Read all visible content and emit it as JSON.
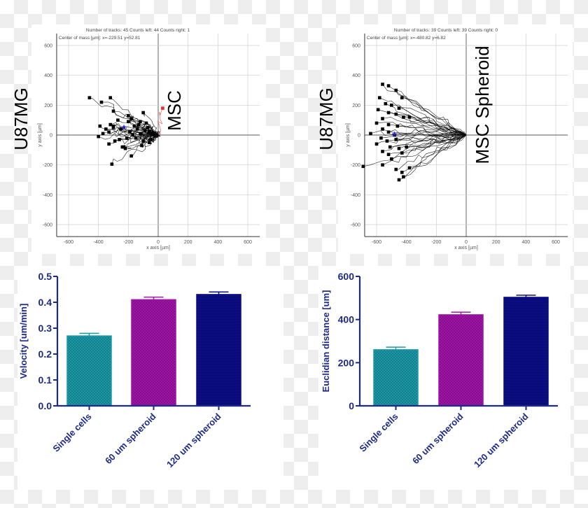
{
  "chart_data": [
    {
      "type": "scatter",
      "subtype": "cell-track-plot",
      "header_line1": "Number of tracks: 45  Counts left: 44  Counts right: 1",
      "header_line2": "Center of mass [µm]: x=-229.51 y=52.81",
      "xlabel": "x axis [µm]",
      "ylabel": "y axis [µm]",
      "xlim": [
        -680,
        680
      ],
      "ylim": [
        -680,
        680
      ],
      "xticks": [
        -600,
        -400,
        -200,
        0,
        200,
        400,
        600
      ],
      "yticks": [
        600,
        400,
        200,
        0,
        -200,
        -400,
        -600
      ],
      "grid": true,
      "side_label": "U87MG",
      "condition_label": "MSC",
      "center_of_mass": [
        -229.51,
        52.81
      ],
      "track_color": "#000000",
      "right_track_color": "#e03030",
      "com_color": "#2020c0",
      "track_endpoints": [
        [
          -460,
          250
        ],
        [
          -380,
          220
        ],
        [
          -320,
          250
        ],
        [
          -300,
          160
        ],
        [
          -270,
          100
        ],
        [
          -200,
          130
        ],
        [
          -180,
          110
        ],
        [
          -100,
          150
        ],
        [
          -390,
          60
        ],
        [
          -350,
          40
        ],
        [
          -320,
          70
        ],
        [
          -300,
          60
        ],
        [
          -330,
          20
        ],
        [
          -300,
          50
        ],
        [
          -400,
          -10
        ],
        [
          -370,
          10
        ],
        [
          -330,
          -60
        ],
        [
          -290,
          -40
        ],
        [
          -260,
          -30
        ],
        [
          -240,
          -80
        ],
        [
          -220,
          -90
        ],
        [
          -160,
          60
        ],
        [
          -120,
          90
        ],
        [
          -80,
          80
        ],
        [
          -60,
          20
        ],
        [
          -150,
          -20
        ],
        [
          -100,
          -40
        ],
        [
          -140,
          40
        ],
        [
          -180,
          -140
        ],
        [
          -310,
          -195
        ],
        [
          -200,
          90
        ],
        [
          -230,
          -80
        ],
        [
          -50,
          -30
        ],
        [
          -90,
          30
        ],
        [
          -70,
          50
        ],
        [
          -120,
          10
        ],
        [
          -40,
          10
        ],
        [
          -110,
          -70
        ],
        [
          -250,
          40
        ],
        [
          -190,
          20
        ],
        [
          -210,
          -20
        ],
        [
          -130,
          70
        ],
        [
          -170,
          0
        ],
        [
          -60,
          -50
        ],
        [
          30,
          180
        ]
      ]
    },
    {
      "type": "scatter",
      "subtype": "cell-track-plot",
      "header_line1": "Number of tracks: 39  Counts left: 39  Counts right: 0",
      "header_line2": "Center of mass [µm]: x=-480.82 y=6.82",
      "xlabel": "x axis [µm]",
      "ylabel": "y axis [µm]",
      "xlim": [
        -680,
        680
      ],
      "ylim": [
        -680,
        680
      ],
      "xticks": [
        -600,
        -400,
        -200,
        0,
        200,
        400,
        600
      ],
      "yticks": [
        600,
        400,
        200,
        0,
        -200,
        -400,
        -600
      ],
      "grid": true,
      "side_label": "U87MG",
      "condition_label": "MSC Spheroid",
      "center_of_mass": [
        -480.82,
        6.82
      ],
      "track_color": "#000000",
      "com_color": "#2020c0",
      "track_endpoints": [
        [
          -560,
          340
        ],
        [
          -520,
          330
        ],
        [
          -470,
          300
        ],
        [
          -430,
          250
        ],
        [
          -580,
          250
        ],
        [
          -540,
          210
        ],
        [
          -500,
          200
        ],
        [
          -450,
          180
        ],
        [
          -590,
          170
        ],
        [
          -520,
          150
        ],
        [
          -470,
          140
        ],
        [
          -420,
          120
        ],
        [
          -560,
          110
        ],
        [
          -600,
          80
        ],
        [
          -520,
          70
        ],
        [
          -460,
          60
        ],
        [
          -560,
          40
        ],
        [
          -640,
          10
        ],
        [
          -520,
          20
        ],
        [
          -480,
          0
        ],
        [
          -570,
          -20
        ],
        [
          -530,
          -40
        ],
        [
          -470,
          -30
        ],
        [
          -600,
          -60
        ],
        [
          -510,
          -80
        ],
        [
          -450,
          -90
        ],
        [
          -560,
          -110
        ],
        [
          -520,
          -130
        ],
        [
          -430,
          -120
        ],
        [
          -500,
          -160
        ],
        [
          -690,
          -210
        ],
        [
          -560,
          -200
        ],
        [
          -470,
          -230
        ],
        [
          -430,
          -250
        ],
        [
          -450,
          -300
        ],
        [
          -420,
          -280
        ],
        [
          -380,
          -220
        ],
        [
          -400,
          -80
        ],
        [
          -380,
          120
        ]
      ]
    },
    {
      "type": "bar",
      "categories": [
        "Single cells",
        "60 um spheroid",
        "120 um spheroid"
      ],
      "values": [
        0.27,
        0.41,
        0.43
      ],
      "errors": [
        0.01,
        0.01,
        0.01
      ],
      "colors": [
        "#1a9aa8",
        "#a014a8",
        "#0c0c82"
      ],
      "ylabel": "Velocity [um/min]",
      "ylim": [
        0,
        0.5
      ],
      "yticks": [
        "0.0",
        "0.1",
        "0.2",
        "0.3",
        "0.4",
        "0.5"
      ],
      "axis_color": "#1c2a8a"
    },
    {
      "type": "bar",
      "categories": [
        "Single cells",
        "60 um spheroid",
        "120 um spheroid"
      ],
      "values": [
        260,
        422,
        503
      ],
      "errors": [
        12,
        12,
        10
      ],
      "colors": [
        "#1a9aa8",
        "#a014a8",
        "#0c0c82"
      ],
      "ylabel": "Euclidian distance [um]",
      "ylim": [
        0,
        600
      ],
      "yticks": [
        "0",
        "200",
        "400",
        "600"
      ],
      "axis_color": "#1c2a8a"
    }
  ]
}
